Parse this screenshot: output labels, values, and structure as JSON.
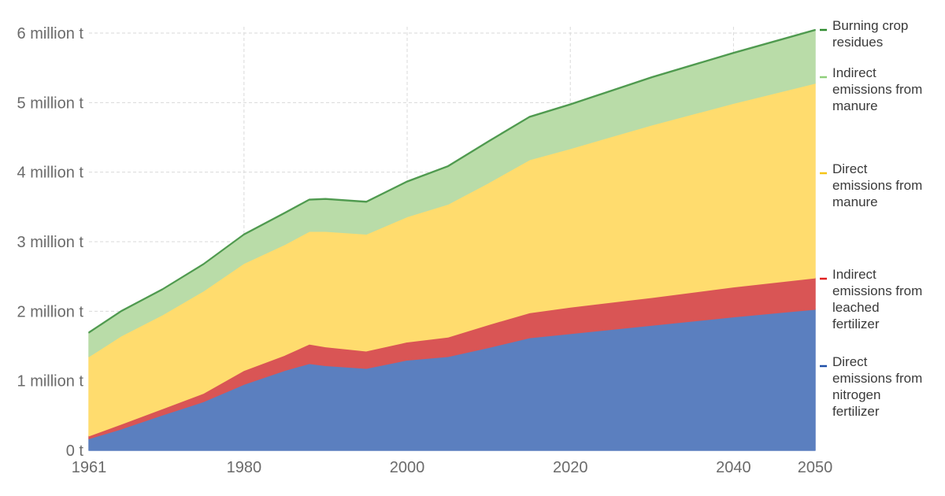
{
  "chart_data": {
    "type": "area",
    "stacked": true,
    "grid": true,
    "legend_position": "right",
    "xlim": [
      1961,
      2050
    ],
    "ylim": [
      0,
      6000000
    ],
    "x_ticks": [
      {
        "value": 1961,
        "label": "1961"
      },
      {
        "value": 1980,
        "label": "1980"
      },
      {
        "value": 2000,
        "label": "2000"
      },
      {
        "value": 2020,
        "label": "2020"
      },
      {
        "value": 2040,
        "label": "2040"
      },
      {
        "value": 2050,
        "label": "2050"
      }
    ],
    "y_ticks": [
      {
        "value": 0,
        "label": "0 t"
      },
      {
        "value": 1000000,
        "label": "1 million t"
      },
      {
        "value": 2000000,
        "label": "2 million t"
      },
      {
        "value": 3000000,
        "label": "3 million t"
      },
      {
        "value": 4000000,
        "label": "4 million t"
      },
      {
        "value": 5000000,
        "label": "5 million t"
      },
      {
        "value": 6000000,
        "label": "6 million t"
      }
    ],
    "x": [
      1961,
      1965,
      1970,
      1975,
      1980,
      1985,
      1988,
      1990,
      1995,
      2000,
      2005,
      2010,
      2015,
      2020,
      2030,
      2040,
      2050
    ],
    "series": [
      {
        "name": "Direct emissions from nitrogen fertilizer",
        "color": "#5b7fbf",
        "values": [
          170000,
          310000,
          510000,
          700000,
          950000,
          1150000,
          1250000,
          1220000,
          1180000,
          1300000,
          1350000,
          1480000,
          1620000,
          1680000,
          1800000,
          1920000,
          2030000
        ]
      },
      {
        "name": "Indirect emissions from leached fertilizer",
        "color": "#d95555",
        "values": [
          40000,
          70000,
          90000,
          120000,
          200000,
          220000,
          280000,
          270000,
          250000,
          260000,
          280000,
          330000,
          360000,
          380000,
          400000,
          430000,
          450000
        ]
      },
      {
        "name": "Direct emissions from manure",
        "color": "#ffdc6e",
        "values": [
          1140000,
          1270000,
          1350000,
          1470000,
          1540000,
          1590000,
          1620000,
          1660000,
          1680000,
          1800000,
          1910000,
          2040000,
          2200000,
          2280000,
          2480000,
          2640000,
          2800000
        ]
      },
      {
        "name": "Indirect emissions from manure",
        "color": "#b9dca8",
        "values": [
          340000,
          350000,
          360000,
          380000,
          410000,
          450000,
          450000,
          460000,
          460000,
          500000,
          540000,
          590000,
          610000,
          630000,
          680000,
          720000,
          760000
        ]
      },
      {
        "name": "Burning crop residues",
        "color": "#4f9a4f",
        "values": [
          10000,
          10000,
          10000,
          10000,
          10000,
          10000,
          10000,
          10000,
          10000,
          10000,
          10000,
          10000,
          10000,
          10000,
          10000,
          10000,
          10000
        ]
      }
    ],
    "legend": [
      {
        "lines": [
          "Burning crop",
          "residues"
        ],
        "color": "#2e8b2e"
      },
      {
        "lines": [
          "Indirect",
          "emissions from",
          "manure"
        ],
        "color": "#8fcf7a"
      },
      {
        "lines": [
          "Direct",
          "emissions from",
          "manure"
        ],
        "color": "#f5c518"
      },
      {
        "lines": [
          "Indirect",
          "emissions from",
          "leached",
          "fertilizer"
        ],
        "color": "#e02020"
      },
      {
        "lines": [
          "Direct",
          "emissions from",
          "nitrogen",
          "fertilizer"
        ],
        "color": "#1f4fa8"
      }
    ]
  }
}
